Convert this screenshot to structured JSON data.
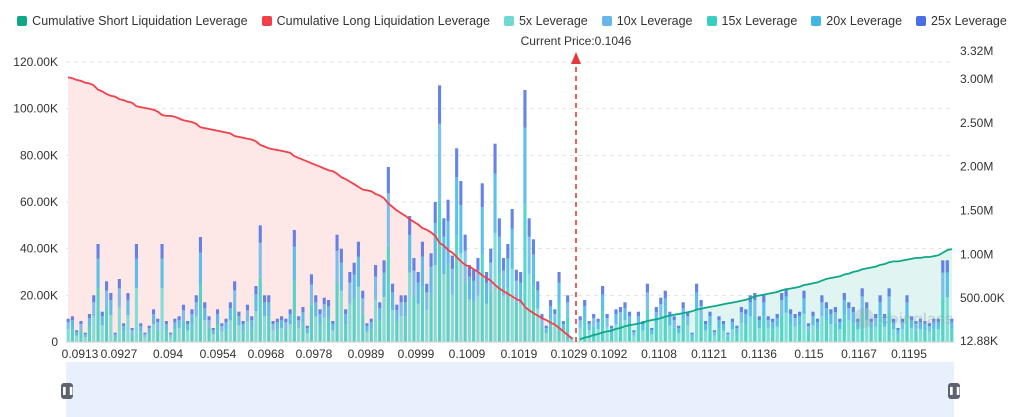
{
  "chart_data": {
    "type": "bar",
    "legend": [
      {
        "label": "Cumulative Short Liquidation Leverage",
        "color": "#0ea788"
      },
      {
        "label": "Cumulative Long Liquidation Leverage",
        "color": "#f2404a"
      },
      {
        "label": "5x Leverage",
        "color": "#6fd9d2"
      },
      {
        "label": "10x Leverage",
        "color": "#66b6ea"
      },
      {
        "label": "15x Leverage",
        "color": "#38cfc0"
      },
      {
        "label": "20x Leverage",
        "color": "#40b5e6"
      },
      {
        "label": "25x Leverage",
        "color": "#4a6fe3"
      }
    ],
    "current_price_label": "Current Price:0.1046",
    "current_price": 0.1046,
    "x_tick_labels": [
      "0.0913",
      "0.0927",
      "0.094",
      "0.0954",
      "0.0968",
      "0.0978",
      "0.0989",
      "0.0999",
      "0.1009",
      "0.1019",
      "0.1029",
      "0.1092",
      "0.1108",
      "0.1121",
      "0.1136",
      "0.115",
      "0.1167",
      "0.1195"
    ],
    "left_axis": {
      "ylim": [
        0,
        120000
      ],
      "ticks": [
        "0",
        "20.00K",
        "40.00K",
        "60.00K",
        "80.00K",
        "100.00K",
        "120.00K"
      ]
    },
    "right_axis": {
      "ylim": [
        0,
        3320000
      ],
      "ticks": [
        "12.88K",
        "500.00K",
        "1.00M",
        "1.50M",
        "2.00M",
        "2.50M",
        "3.00M",
        "3.32M"
      ]
    },
    "long_bars": [
      10000,
      11000,
      5000,
      9000,
      4000,
      12000,
      20000,
      42000,
      13000,
      26000,
      21000,
      4000,
      27000,
      8000,
      21000,
      6000,
      42000,
      8000,
      4000,
      7000,
      14000,
      10000,
      42000,
      9000,
      4000,
      10000,
      11000,
      16000,
      9000,
      14000,
      20000,
      45000,
      17000,
      11000,
      6000,
      14000,
      8000,
      10000,
      17000,
      26000,
      13000,
      9000,
      16000,
      11000,
      24000,
      50000,
      20000,
      20000,
      9000,
      10000,
      11000,
      10000,
      14000,
      48000,
      11000,
      15000,
      7000,
      29000,
      20000,
      14000,
      19000,
      18000,
      9000,
      46000,
      40000,
      14000,
      30000,
      34000,
      43000,
      22000,
      8000,
      10000,
      33000,
      17000,
      35000,
      75000,
      25000,
      16000,
      20000,
      20000,
      54000,
      36000,
      30000,
      43000,
      25000,
      38000,
      60000,
      110000,
      53000,
      61000,
      37000,
      83000,
      69000,
      46000,
      33000,
      31000,
      36000,
      68000,
      30000,
      40000,
      85000,
      53000,
      36000,
      42000,
      57000,
      31000,
      30000,
      108000,
      53000,
      44000,
      26000,
      12000,
      7000,
      18000,
      14000,
      30000,
      9000,
      20000,
      2000
    ],
    "short_bars": [
      11000,
      18000,
      9000,
      12000,
      10000,
      24000,
      12000,
      7000,
      14000,
      15000,
      17000,
      13000,
      5000,
      13000,
      9000,
      25000,
      6000,
      15000,
      19000,
      22000,
      13000,
      11000,
      7000,
      17000,
      13000,
      4000,
      25000,
      18000,
      9000,
      13000,
      5000,
      11000,
      9000,
      4000,
      10000,
      7000,
      15000,
      14000,
      20000,
      21000,
      11000,
      20000,
      11000,
      10000,
      12000,
      21000,
      23000,
      14000,
      12000,
      13000,
      22000,
      8000,
      13000,
      10000,
      20000,
      17000,
      14000,
      15000,
      10000,
      21000,
      17000,
      15000,
      10000,
      23000,
      17000,
      10000,
      12000,
      20000,
      12000,
      23000,
      10000,
      6000,
      10000,
      20000,
      11000,
      9000,
      10000,
      9000,
      8000,
      10000,
      10000,
      35000,
      35000,
      10000
    ],
    "long_cumulative": [
      3020000,
      3010000,
      2990000,
      2980000,
      2960000,
      2950000,
      2930000,
      2880000,
      2860000,
      2830000,
      2810000,
      2800000,
      2770000,
      2760000,
      2740000,
      2730000,
      2690000,
      2680000,
      2670000,
      2660000,
      2650000,
      2630000,
      2590000,
      2580000,
      2580000,
      2570000,
      2550000,
      2530000,
      2520000,
      2510000,
      2490000,
      2450000,
      2440000,
      2430000,
      2420000,
      2410000,
      2400000,
      2390000,
      2380000,
      2350000,
      2340000,
      2330000,
      2320000,
      2310000,
      2290000,
      2250000,
      2230000,
      2210000,
      2200000,
      2190000,
      2180000,
      2170000,
      2160000,
      2120000,
      2100000,
      2080000,
      2060000,
      2040000,
      2020000,
      2000000,
      1980000,
      1960000,
      1950000,
      1920000,
      1880000,
      1860000,
      1830000,
      1800000,
      1770000,
      1740000,
      1730000,
      1720000,
      1690000,
      1670000,
      1640000,
      1580000,
      1540000,
      1500000,
      1470000,
      1440000,
      1400000,
      1370000,
      1340000,
      1300000,
      1280000,
      1250000,
      1210000,
      1130000,
      1100000,
      1050000,
      1020000,
      970000,
      920000,
      880000,
      860000,
      830000,
      800000,
      760000,
      730000,
      700000,
      650000,
      610000,
      580000,
      550000,
      520000,
      490000,
      470000,
      400000,
      360000,
      330000,
      300000,
      270000,
      250000,
      220000,
      200000,
      160000,
      120000,
      80000,
      40000
    ],
    "short_cumulative": [
      30000,
      50000,
      60000,
      80000,
      90000,
      110000,
      120000,
      130000,
      150000,
      160000,
      180000,
      190000,
      200000,
      210000,
      220000,
      240000,
      250000,
      260000,
      270000,
      290000,
      300000,
      310000,
      320000,
      330000,
      340000,
      350000,
      370000,
      380000,
      390000,
      400000,
      410000,
      420000,
      430000,
      440000,
      450000,
      460000,
      470000,
      480000,
      500000,
      520000,
      530000,
      540000,
      550000,
      560000,
      570000,
      590000,
      600000,
      610000,
      620000,
      630000,
      650000,
      660000,
      670000,
      680000,
      700000,
      720000,
      730000,
      740000,
      750000,
      770000,
      780000,
      800000,
      810000,
      830000,
      840000,
      850000,
      860000,
      880000,
      890000,
      910000,
      920000,
      920000,
      930000,
      940000,
      950000,
      960000,
      960000,
      970000,
      970000,
      980000,
      990000,
      1020000,
      1050000,
      1060000
    ]
  },
  "watermark": "coinglass"
}
